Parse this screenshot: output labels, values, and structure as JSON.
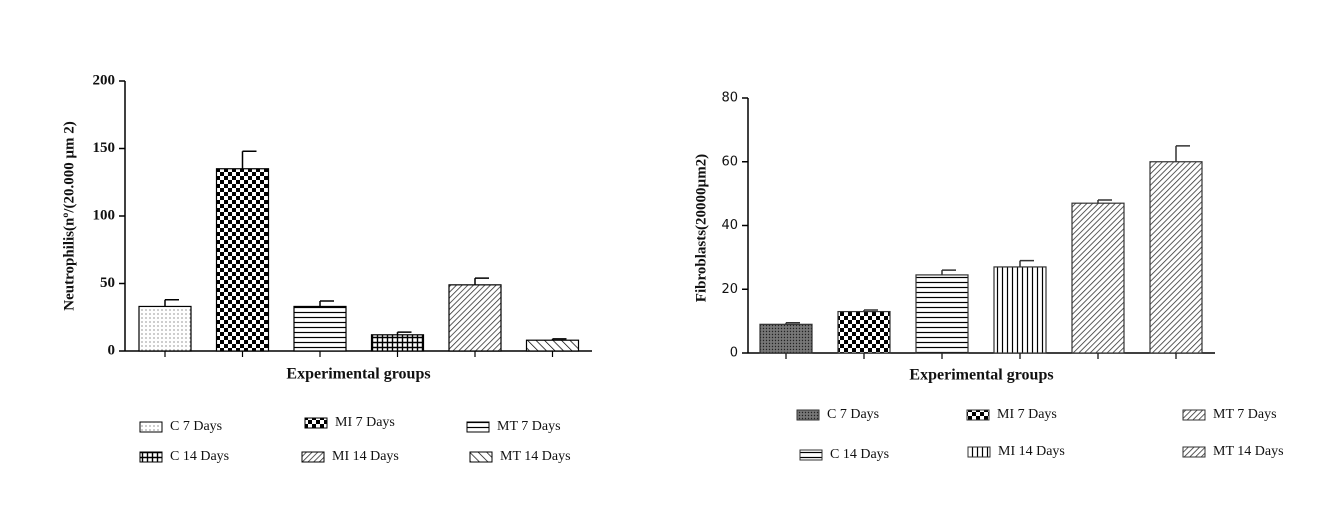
{
  "chart_data": [
    {
      "type": "bar",
      "ylabel": "Neutrophilis(nº/(20.000 μm 2)",
      "xlabel": "Experimental groups",
      "categories": [
        "C 7 Days",
        "MI 7 Days",
        "MT 7 Days",
        "C 14 Days",
        "MI 14 Days",
        "MT 14 Days"
      ],
      "values": [
        33,
        135,
        33,
        12,
        49,
        8
      ],
      "errors": [
        5,
        13,
        4,
        2,
        5,
        1
      ],
      "color": "#000000",
      "ylim": [
        0,
        200
      ],
      "yticks": [
        0,
        50,
        100,
        150,
        200
      ]
    },
    {
      "type": "bar",
      "ylabel": "Fibroblasts(20000µm2)",
      "xlabel": "Experimental groups",
      "categories": [
        "C 7 Days",
        "MI 7 Days",
        "C 14 Days",
        "MI 14 Days",
        "MT 7 Days",
        "MT 14 Days"
      ],
      "values": [
        9,
        13,
        24.5,
        27,
        47,
        60
      ],
      "errors": [
        0.5,
        0.5,
        1.5,
        2,
        1,
        5
      ],
      "color": "#333333",
      "ylim": [
        0,
        80
      ],
      "yticks": [
        0,
        20,
        40,
        60,
        80
      ]
    }
  ]
}
